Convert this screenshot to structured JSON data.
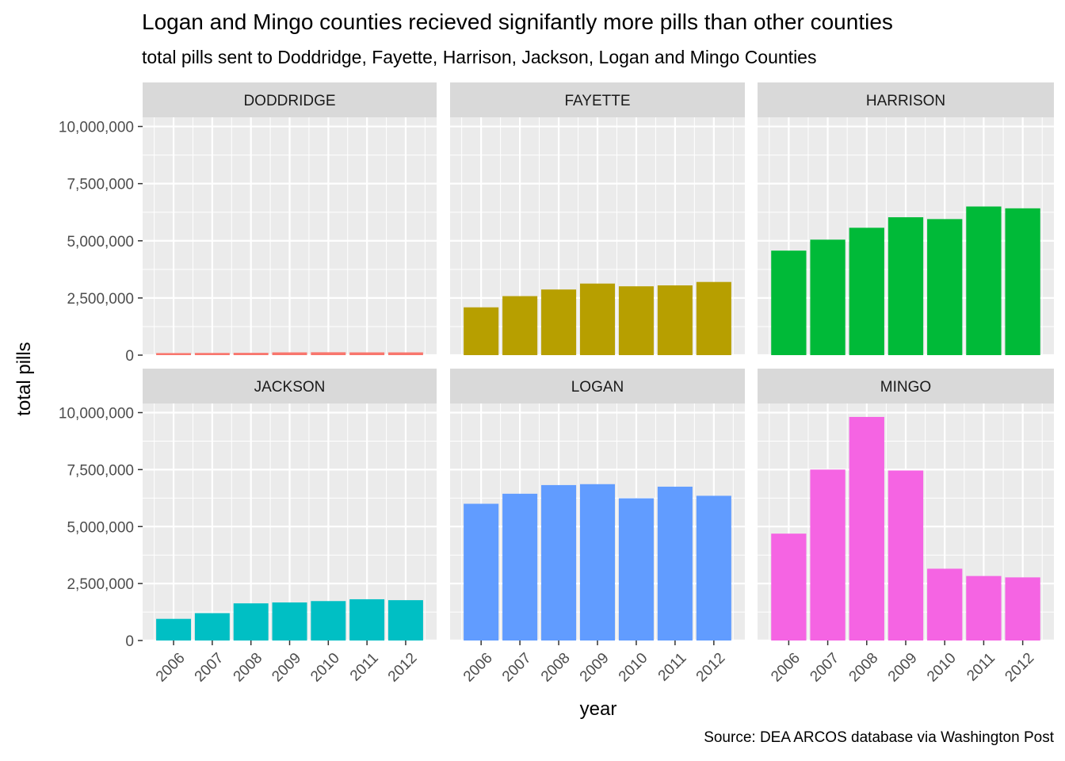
{
  "title": "Logan and Mingo counties recieved signifantly more pills than other counties",
  "subtitle": "total pills sent to Doddridge, Fayette, Harrison, Jackson, Logan and Mingo Counties",
  "caption": "Source: DEA ARCOS database via Washington Post",
  "colors": {
    "panel_bg": "#EBEBEB",
    "strip_bg": "#D9D9D9",
    "grid": "#FFFFFF",
    "axis_text": "#4D4D4D"
  },
  "chart_data": {
    "type": "bar",
    "facet_by": "county",
    "facet_layout": "3 columns x 2 rows",
    "xlabel": "year",
    "ylabel": "total pills",
    "x": [
      "2006",
      "2007",
      "2008",
      "2009",
      "2010",
      "2011",
      "2012"
    ],
    "ylim": [
      0,
      10400000
    ],
    "yticks": [
      0,
      2500000,
      5000000,
      7500000,
      10000000
    ],
    "ytick_labels": [
      "0",
      "2,500,000",
      "5,000,000",
      "7,500,000",
      "10,000,000"
    ],
    "grid": true,
    "legend": "none",
    "panels": [
      {
        "label": "DODDRIDGE",
        "color": "#F8766D",
        "values": [
          90000,
          95000,
          100000,
          120000,
          125000,
          120000,
          120000
        ]
      },
      {
        "label": "FAYETTE",
        "color": "#B79F00",
        "values": [
          2090000,
          2580000,
          2870000,
          3130000,
          3010000,
          3050000,
          3200000
        ]
      },
      {
        "label": "HARRISON",
        "color": "#00BA38",
        "values": [
          4570000,
          5050000,
          5570000,
          6030000,
          5950000,
          6500000,
          6420000
        ]
      },
      {
        "label": "JACKSON",
        "color": "#00BFC4",
        "values": [
          950000,
          1200000,
          1630000,
          1670000,
          1730000,
          1810000,
          1770000
        ]
      },
      {
        "label": "LOGAN",
        "color": "#619CFF",
        "values": [
          6000000,
          6440000,
          6820000,
          6860000,
          6240000,
          6750000,
          6350000
        ]
      },
      {
        "label": "MINGO",
        "color": "#F564E3",
        "values": [
          4690000,
          7500000,
          9810000,
          7460000,
          3150000,
          2830000,
          2770000
        ]
      }
    ]
  }
}
